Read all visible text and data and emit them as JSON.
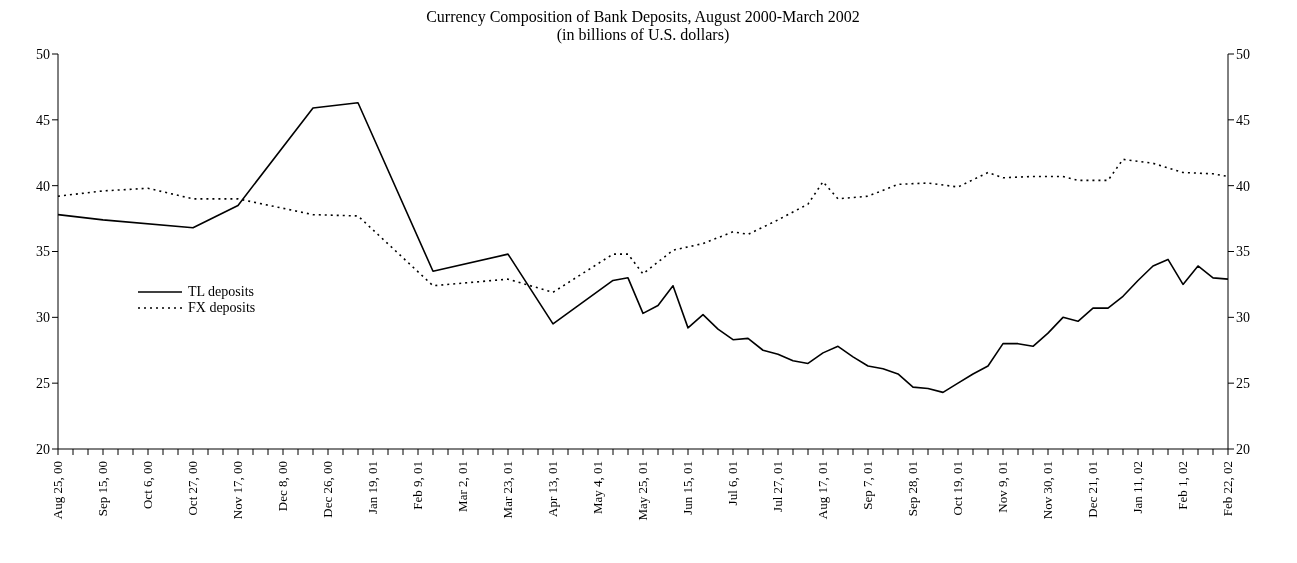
{
  "chart_data": {
    "type": "line",
    "title": "Currency Composition of Bank Deposits, August 2000-March 2002",
    "subtitle": "(in billions of U.S. dollars)",
    "categories": [
      "Aug 25, 00",
      null,
      null,
      "Sep 15, 00",
      null,
      null,
      "Oct 6, 00",
      null,
      null,
      "Oct 27, 00",
      null,
      null,
      "Nov 17, 00",
      null,
      null,
      "Dec 8, 00",
      null,
      null,
      "Dec 26, 00",
      null,
      null,
      "Jan 19, 01",
      null,
      null,
      "Feb 9, 01",
      null,
      null,
      "Mar 2, 01",
      null,
      null,
      "Mar 23, 01",
      null,
      null,
      "Apr 13, 01",
      null,
      null,
      "May 4, 01",
      null,
      null,
      "May 25, 01",
      null,
      null,
      "Jun 15, 01",
      null,
      null,
      "Jul 6, 01",
      null,
      null,
      "Jul 27, 01",
      null,
      null,
      "Aug 17, 01",
      null,
      null,
      "Sep 7, 01",
      null,
      null,
      "Sep 28, 01",
      null,
      null,
      "Oct 19, 01",
      null,
      null,
      "Nov 9, 01",
      null,
      null,
      "Nov 30, 01",
      null,
      null,
      "Dec 21, 01",
      null,
      null,
      "Jan 11, 02",
      null,
      null,
      "Feb 1, 02",
      null,
      null,
      "Feb 22, 02"
    ],
    "series": [
      {
        "name": "TL deposits",
        "color": "#000000",
        "line_style": "solid",
        "values": [
          37.8,
          null,
          null,
          37.4,
          null,
          null,
          null,
          null,
          null,
          36.8,
          null,
          null,
          38.5,
          null,
          null,
          null,
          null,
          45.9,
          null,
          null,
          46.3,
          null,
          null,
          null,
          null,
          33.5,
          null,
          null,
          null,
          null,
          34.8,
          null,
          null,
          29.5,
          null,
          null,
          null,
          32.8,
          33.0,
          30.3,
          30.9,
          32.4,
          29.2,
          30.2,
          29.1,
          28.3,
          28.4,
          27.5,
          27.2,
          26.7,
          26.5,
          27.3,
          27.8,
          27.0,
          26.3,
          26.1,
          25.7,
          24.7,
          24.6,
          24.3,
          25.0,
          25.7,
          26.3,
          28.0,
          28.0,
          27.8,
          28.8,
          30.0,
          29.7,
          30.7,
          30.7,
          31.6,
          32.8,
          33.9,
          34.4,
          32.5,
          33.9,
          33.0,
          32.9
        ]
      },
      {
        "name": "FX deposits",
        "color": "#000000",
        "line_style": "dotted",
        "values": [
          39.2,
          null,
          null,
          39.6,
          null,
          null,
          39.8,
          null,
          null,
          39.0,
          null,
          null,
          39.0,
          null,
          null,
          null,
          null,
          37.8,
          null,
          null,
          37.7,
          null,
          null,
          null,
          null,
          32.4,
          null,
          null,
          null,
          null,
          32.9,
          null,
          null,
          31.9,
          null,
          null,
          null,
          34.8,
          34.8,
          33.3,
          null,
          35.1,
          null,
          35.6,
          null,
          36.5,
          36.3,
          null,
          37.4,
          null,
          38.6,
          40.3,
          39.0,
          null,
          39.2,
          null,
          40.1,
          null,
          40.2,
          null,
          39.9,
          null,
          41.0,
          40.6,
          null,
          40.7,
          null,
          40.7,
          40.4,
          null,
          40.4,
          42.0,
          null,
          41.7,
          null,
          41.0,
          null,
          40.9,
          40.7
        ]
      }
    ],
    "ylim": [
      20,
      50
    ],
    "yticks": [
      20,
      25,
      30,
      35,
      40,
      45,
      50
    ],
    "y2lim": [
      20,
      50
    ],
    "y2ticks": [
      20,
      25,
      30,
      35,
      40,
      45,
      50
    ],
    "grid": false,
    "legend": "left",
    "marker": "none"
  }
}
